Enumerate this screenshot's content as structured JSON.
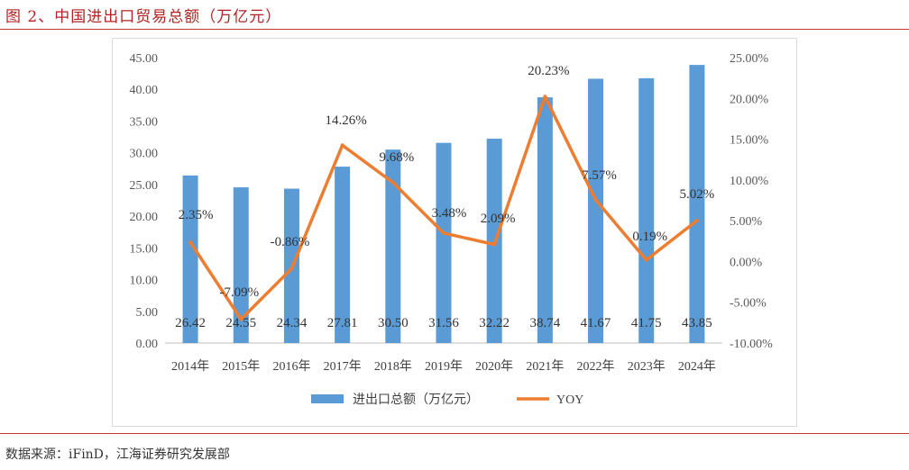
{
  "figure": {
    "title": "图 2、中国进出口贸易总额（万亿元）",
    "source": "数据来源：iFinD，江海证券研究发展部"
  },
  "chart_data": {
    "type": "bar",
    "categories": [
      "2014年",
      "2015年",
      "2016年",
      "2017年",
      "2018年",
      "2019年",
      "2020年",
      "2021年",
      "2022年",
      "2023年",
      "2024年"
    ],
    "series": [
      {
        "name": "进出口总额（万亿元）",
        "type": "bar",
        "axis": "left",
        "color": "#5b9bd5",
        "values": [
          26.42,
          24.55,
          24.34,
          27.81,
          30.5,
          31.56,
          32.22,
          38.74,
          41.67,
          41.75,
          43.85
        ]
      },
      {
        "name": "YOY",
        "type": "line",
        "axis": "right",
        "color": "#ed7d31",
        "values": [
          2.35,
          -7.09,
          -0.86,
          14.26,
          9.68,
          3.48,
          2.09,
          20.23,
          7.57,
          0.19,
          5.02
        ]
      }
    ],
    "bar_labels": [
      "26.42",
      "24.55",
      "24.34",
      "27.81",
      "30.50",
      "31.56",
      "32.22",
      "38.74",
      "41.67",
      "41.75",
      "43.85"
    ],
    "line_labels": [
      "2.35%",
      "-7.09%",
      "-0.86%",
      "14.26%",
      "9.68%",
      "3.48%",
      "2.09%",
      "20.23%",
      "7.57%",
      "0.19%",
      "5.02%"
    ],
    "left_axis": {
      "ylim": [
        0,
        45
      ],
      "ticks": [
        "0.00",
        "5.00",
        "10.00",
        "15.00",
        "20.00",
        "25.00",
        "30.00",
        "35.00",
        "40.00",
        "45.00"
      ]
    },
    "right_axis": {
      "ylim": [
        -10,
        25
      ],
      "ticks": [
        "-10.00%",
        "-5.00%",
        "0.00%",
        "5.00%",
        "10.00%",
        "15.00%",
        "20.00%",
        "25.00%"
      ]
    },
    "legend": {
      "placement": "bottom",
      "items": [
        "进出口总额（万亿元）",
        "YOY"
      ]
    },
    "grid": false
  }
}
